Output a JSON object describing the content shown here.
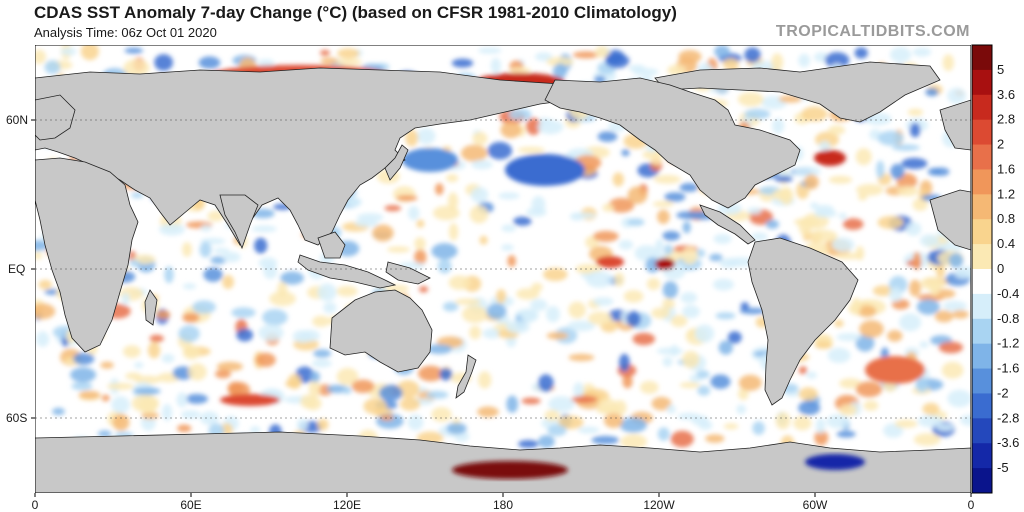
{
  "title": "CDAS SST Anomaly 7-day Change (°C) (based on CFSR 1981-2010 Climatology)",
  "subtitle": "Analysis Time: 06z Oct 01 2020",
  "credit": "TROPICALTIDBITS.COM",
  "map": {
    "lat_labels": [
      "60N",
      "EQ",
      "60S"
    ],
    "lon_labels": [
      "0",
      "60E",
      "120E",
      "180",
      "120W",
      "60W",
      "0"
    ],
    "land_color": "#c8c8c8",
    "ocean_base": "#ffffff",
    "features": [
      {
        "name": "north-pacific-cool-pool",
        "color": "#3f6fd6"
      },
      {
        "name": "equatorial-warm-spot",
        "color": "#c81e1e"
      },
      {
        "name": "antarctic-warm-spot",
        "color": "#7a0a0a"
      },
      {
        "name": "weddell-cool-spot",
        "color": "#0a1ea8"
      }
    ]
  },
  "colorbar": {
    "labels": [
      "5",
      "3.6",
      "2.8",
      "2",
      "1.6",
      "1.2",
      "0.8",
      "0.4",
      "0",
      "-0.4",
      "-0.8",
      "-1.2",
      "-1.6",
      "-2",
      "-2.8",
      "-3.6",
      "-5"
    ],
    "colors": [
      "#7a0a0a",
      "#a81010",
      "#c82a1e",
      "#dc4a32",
      "#e8704a",
      "#f0965a",
      "#f5b874",
      "#f9d48e",
      "#fbe9b4",
      "#ffffff",
      "#d6eefa",
      "#a9d4f2",
      "#7fb4e8",
      "#5890dc",
      "#3a6cd0",
      "#2448bc",
      "#1428a8",
      "#0a148c"
    ]
  }
}
